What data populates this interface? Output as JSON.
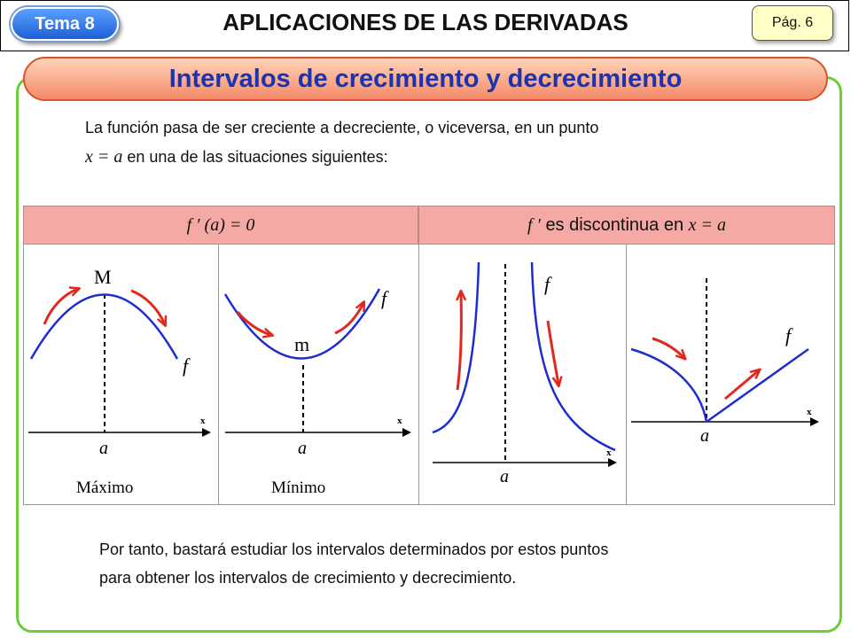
{
  "header": {
    "tema": "Tema 8",
    "title": "APLICACIONES DE LAS DERIVADAS",
    "page": "Pág. 6"
  },
  "section_title": "Intervalos de crecimiento y decrecimiento",
  "intro": {
    "line1": "La función pasa de ser creciente a decreciente, o viceversa, en un punto",
    "line2_math": "x = a",
    "line2_text": "en una de las situaciones siguientes:"
  },
  "table": {
    "left_header": "f ′ (a) = 0",
    "right_header_func": "f ′",
    "right_header_text": "es discontinua en",
    "right_header_math": "x = a"
  },
  "panels": {
    "max": {
      "peak_label": "M",
      "f_label": "f",
      "x_label": "x",
      "a_label": "a",
      "caption": "Máximo"
    },
    "min": {
      "valley_label": "m",
      "f_label": "f",
      "x_label": "x",
      "a_label": "a",
      "caption": "Mínimo"
    },
    "asym": {
      "f_label": "f",
      "x_label": "x",
      "a_label": "a"
    },
    "corner": {
      "f_label": "f",
      "x_label": "x",
      "a_label": "a"
    }
  },
  "outro": {
    "line1": "Por tanto, bastará estudiar los intervalos determinados por estos puntos",
    "line2": "para obtener los intervalos de crecimiento y decrecimiento."
  },
  "colors": {
    "curve": "#1f2ccf",
    "arrow": "#e0281e",
    "frame": "#6ecb3a",
    "title": "#1a33b0",
    "header_cell": "#f5a9a4"
  }
}
